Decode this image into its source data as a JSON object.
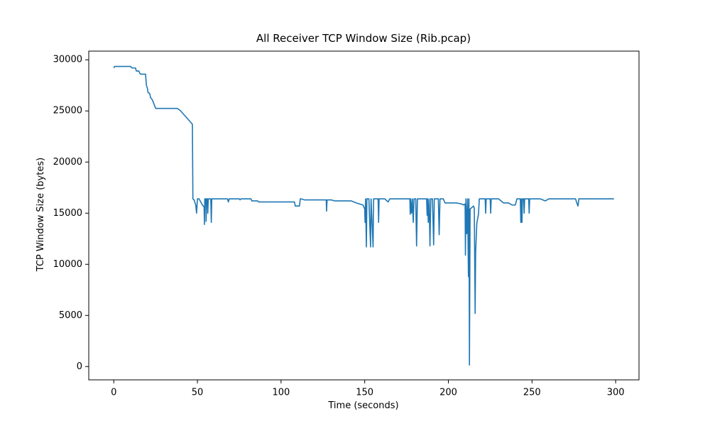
{
  "chart_data": {
    "type": "line",
    "title": "All Receiver TCP Window Size (Rib.pcap)",
    "x_label": "Time (seconds)",
    "y_label": "TCP Window Size (bytes)",
    "color": "#1f77b4",
    "xlim": [
      -14.95,
      313.95
    ],
    "ylim": [
      -1300,
      30850
    ],
    "xticks": [
      0,
      50,
      100,
      150,
      200,
      250,
      300
    ],
    "yticks": [
      0,
      5000,
      10000,
      15000,
      20000,
      25000,
      30000
    ],
    "x": [
      0,
      0.5,
      10,
      11,
      13,
      13.5,
      15,
      15.5,
      16,
      19,
      19.5,
      20,
      20.5,
      21.5,
      22,
      23,
      24,
      25,
      38,
      40,
      47,
      47.3,
      48,
      49,
      49.5,
      50,
      51,
      53,
      54,
      54.2,
      54.4,
      55,
      55.2,
      55.5,
      56,
      56.2,
      56.5,
      58,
      58.3,
      58.6,
      68,
      68.5,
      69,
      75,
      75.5,
      76,
      82,
      82.5,
      86,
      86.5,
      108,
      108.5,
      111,
      111.5,
      112,
      114,
      127,
      127.2,
      127.5,
      130,
      132,
      142,
      145,
      149,
      150,
      150.2,
      150.5,
      151,
      151.3,
      152.5,
      153.5,
      153.8,
      155,
      155.3,
      155.6,
      158,
      158.3,
      158.6,
      162,
      164,
      165,
      177,
      177.2,
      177.5,
      178,
      178.5,
      179,
      179.5,
      180.5,
      181,
      181.5,
      187,
      187.3,
      187.6,
      188,
      188.5,
      189,
      189.5,
      190.5,
      191.2,
      191.6,
      194,
      194.5,
      195,
      197,
      198,
      205,
      208,
      209,
      210,
      210.2,
      210.5,
      211,
      211.5,
      212,
      212.3,
      212.6,
      213,
      215,
      215.5,
      216,
      216.3,
      217,
      218,
      218.5,
      222,
      222.3,
      222.6,
      225,
      225.3,
      225.6,
      230,
      233,
      236,
      238,
      240,
      241,
      243,
      243.3,
      243.6,
      244,
      244.3,
      245,
      245.3,
      245.6,
      248,
      248.3,
      248.6,
      255,
      258,
      260,
      276,
      277,
      277.5,
      278,
      299
    ],
    "values": [
      29200,
      29350,
      29350,
      29200,
      29200,
      28900,
      28900,
      28700,
      28600,
      28600,
      27500,
      27300,
      26800,
      26700,
      26300,
      26100,
      25700,
      25250,
      25250,
      25000,
      23700,
      16400,
      16300,
      15800,
      15000,
      16400,
      16400,
      15800,
      15600,
      13900,
      16400,
      16400,
      14200,
      16400,
      16400,
      15000,
      16400,
      16400,
      14100,
      16400,
      16400,
      16100,
      16400,
      16400,
      16300,
      16400,
      16400,
      16200,
      16200,
      16100,
      16100,
      15700,
      15700,
      16400,
      16400,
      16300,
      16300,
      15200,
      16300,
      16300,
      16200,
      16200,
      16000,
      15800,
      15400,
      14100,
      16400,
      11700,
      16400,
      16400,
      11700,
      16400,
      11700,
      16400,
      16400,
      16400,
      14100,
      16400,
      16400,
      16100,
      16400,
      16400,
      14900,
      16400,
      15000,
      16400,
      14100,
      16400,
      16400,
      11800,
      16400,
      16400,
      14800,
      16400,
      14100,
      16400,
      11800,
      16400,
      16400,
      11900,
      16400,
      16400,
      12900,
      16400,
      16400,
      16000,
      16000,
      15900,
      15800,
      15900,
      10900,
      16400,
      13000,
      16400,
      8800,
      16400,
      150,
      15400,
      15700,
      15500,
      5200,
      11200,
      14000,
      14900,
      16400,
      16400,
      15000,
      16400,
      16400,
      15000,
      16400,
      16400,
      16000,
      16000,
      15800,
      15800,
      16400,
      16400,
      14100,
      16400,
      14100,
      16400,
      16400,
      15000,
      16400,
      16400,
      15000,
      16400,
      16400,
      16200,
      16400,
      16400,
      15900,
      15700,
      16400,
      16400
    ]
  }
}
